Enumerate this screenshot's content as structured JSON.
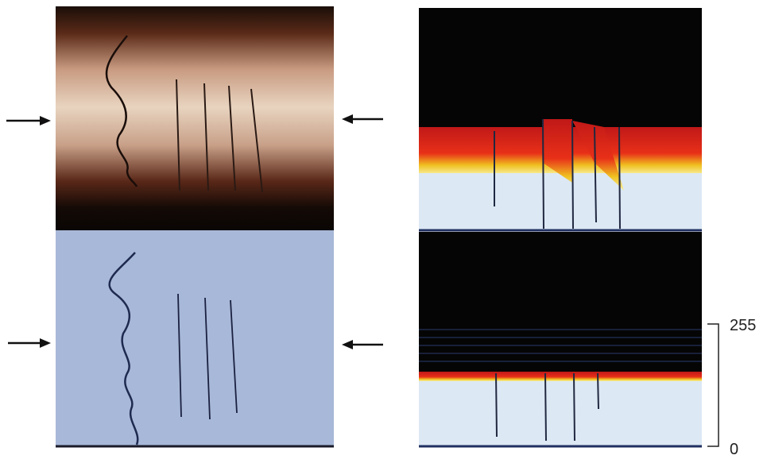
{
  "scale": {
    "top": "255",
    "bottom": "0"
  }
}
